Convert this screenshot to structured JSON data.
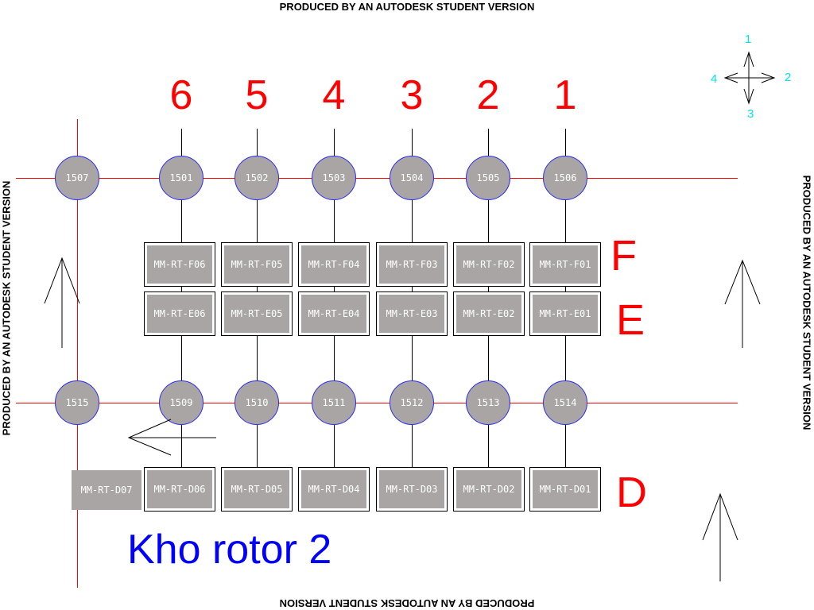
{
  "watermark": "PRODUCED BY AN AUTODESK STUDENT VERSION",
  "title": "Kho rotor 2",
  "columns": [
    "6",
    "5",
    "4",
    "3",
    "2",
    "1"
  ],
  "rows": [
    "F",
    "E",
    "D"
  ],
  "compass": {
    "north": "1",
    "east": "2",
    "south": "3",
    "west": "4"
  },
  "top_nodes": [
    "1507",
    "1501",
    "1502",
    "1503",
    "1504",
    "1505",
    "1506"
  ],
  "bottom_nodes": [
    "1515",
    "1509",
    "1510",
    "1511",
    "1512",
    "1513",
    "1514"
  ],
  "row_f_boxes": [
    "MM-RT-F06",
    "MM-RT-F05",
    "MM-RT-F04",
    "MM-RT-F03",
    "MM-RT-F02",
    "MM-RT-F01"
  ],
  "row_e_boxes": [
    "MM-RT-E06",
    "MM-RT-E05",
    "MM-RT-E04",
    "MM-RT-E03",
    "MM-RT-E02",
    "MM-RT-E01"
  ],
  "row_d_boxes": [
    "MM-RT-D07",
    "MM-RT-D06",
    "MM-RT-D05",
    "MM-RT-D04",
    "MM-RT-D03",
    "MM-RT-D02",
    "MM-RT-D01"
  ],
  "colors": {
    "grid_line": "#ff0000",
    "label": "#ff0000",
    "title": "#0000ff",
    "node_fill": "#a9a5a5",
    "node_outline": "#2a2aff",
    "compass_text": "#00e5e5"
  }
}
